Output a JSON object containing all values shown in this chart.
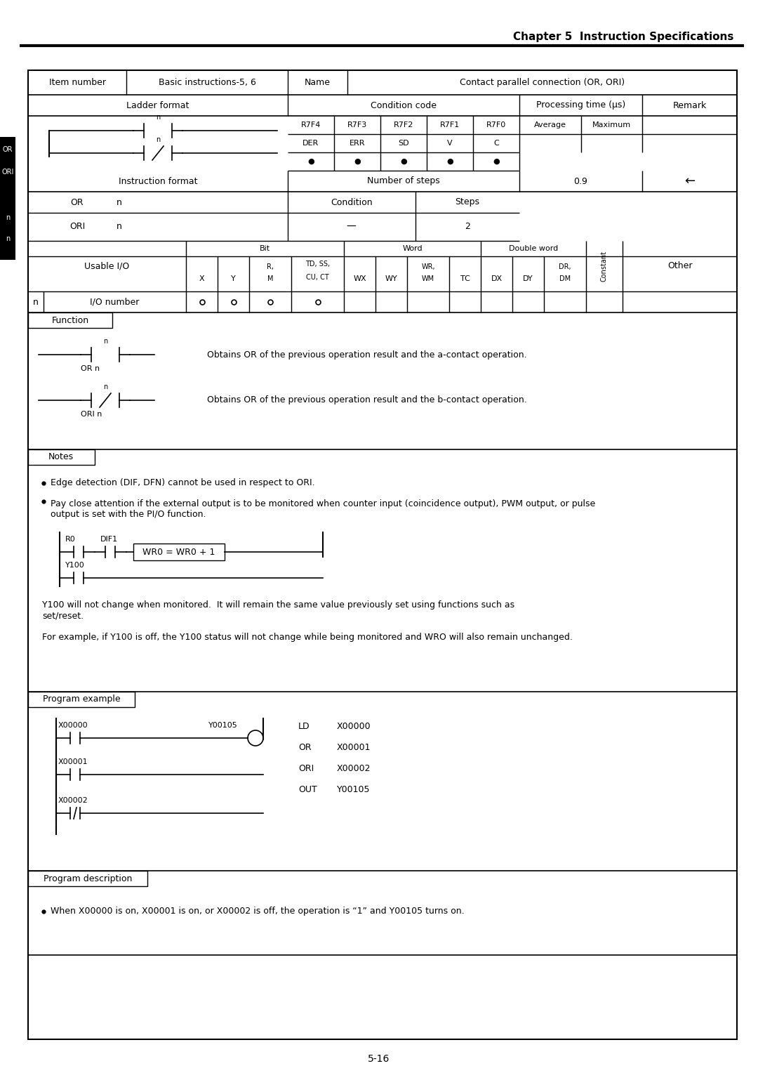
{
  "title": "Chapter 5  Instruction Specifications",
  "page_number": "5-16",
  "bg_color": "#ffffff",
  "func_text_a": "Obtains OR of the previous operation result and the a-contact operation.",
  "func_label_a": "OR n",
  "func_text_b": "Obtains OR of the previous operation result and the b-contact operation.",
  "func_label_b": "ORI n",
  "notes_bullets": [
    "Edge detection (DIF, DFN) cannot be used in respect to ORI.",
    "Pay close attention if the external output is to be monitored when counter input (coincidence output), PWM output, or pulse\noutput is set with the PI/O function."
  ],
  "ladder_note_expr": "WR0 = WR0 + 1",
  "ladder_note_r0": "R0",
  "ladder_note_dif1": "DIF1",
  "ladder_note_y100": "Y100",
  "note_text1": "Y100 will not change when monitored.  It will remain the same value previously set using functions such as\nset/reset.",
  "note_text2": "For example, if Y100 is off, the Y100 status will not change while being monitored and WRO will also remain unchanged.",
  "prog_x00000": "X00000",
  "prog_x00001": "X00001",
  "prog_x00002": "X00002",
  "prog_y00105": "Y00105",
  "prog_code_cmds": [
    "LD",
    "OR",
    "ORI",
    "OUT"
  ],
  "prog_code_args": [
    "X00000",
    "X00001",
    "X00002",
    "Y00105"
  ],
  "prog_desc_text": "When X00000 is on, X00001 is on, or X00002 is off, the operation is “1” and Y00105 turns on."
}
